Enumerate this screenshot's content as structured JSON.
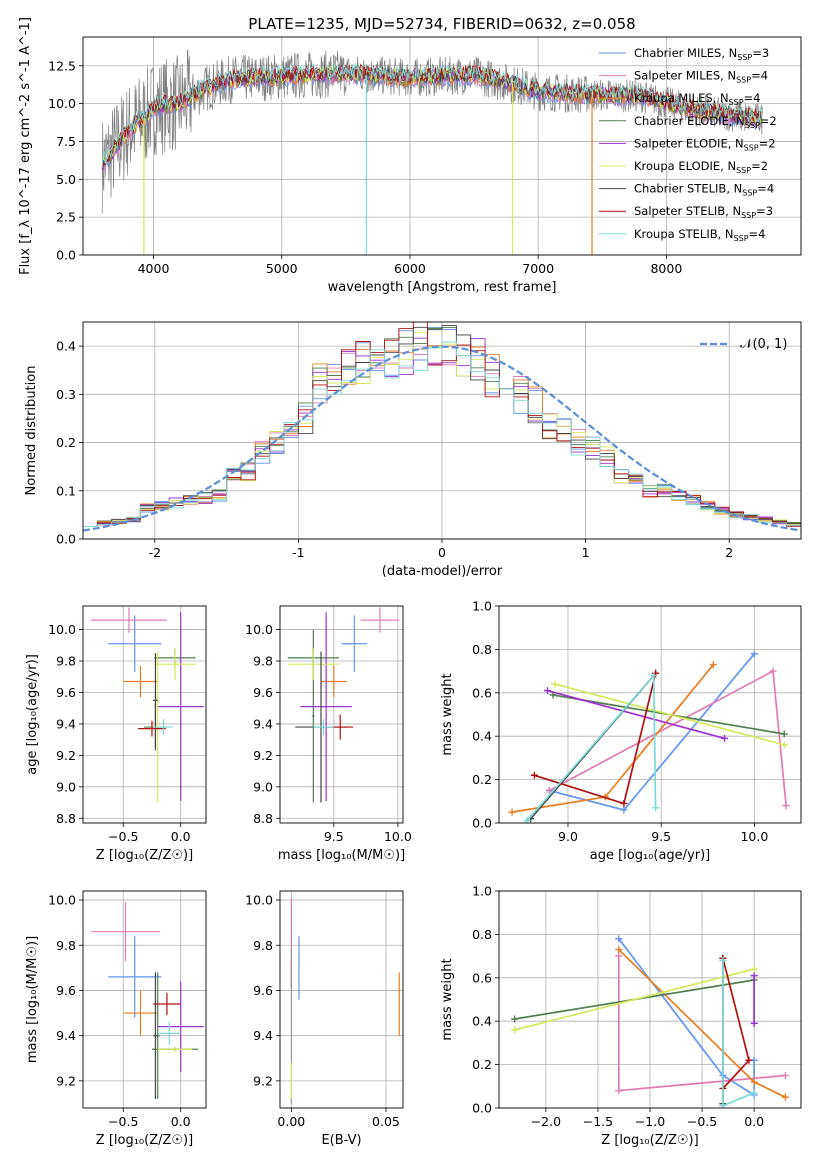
{
  "chart_data": [
    {
      "id": "spectrum",
      "type": "line",
      "title": "PLATE=1235, MJD=52734, FIBERID=0632, z=0.058",
      "xlabel": "wavelength [Angstrom, rest frame]",
      "ylabel": "Flux [f_λ 10^-17 erg cm^-2 s^-1 A^-1]",
      "xlim": [
        3450,
        9050
      ],
      "ylim": [
        0,
        14.4
      ],
      "xticks": [
        4000,
        5000,
        6000,
        7000,
        8000
      ],
      "yticks": [
        0.0,
        2.5,
        5.0,
        7.5,
        10.0,
        12.5
      ],
      "legend_position": "top-right",
      "data_color": "#808080",
      "continuum_points": [
        [
          3600,
          6.0
        ],
        [
          3700,
          7.0
        ],
        [
          3800,
          8.2
        ],
        [
          3950,
          9.2
        ],
        [
          4000,
          9.8
        ],
        [
          4200,
          10.0
        ],
        [
          4400,
          11.0
        ],
        [
          4600,
          11.6
        ],
        [
          5000,
          11.8
        ],
        [
          5500,
          12.0
        ],
        [
          6000,
          11.7
        ],
        [
          6500,
          11.9
        ],
        [
          6800,
          11.3
        ],
        [
          7000,
          10.8
        ],
        [
          7400,
          10.6
        ],
        [
          7800,
          10.5
        ],
        [
          8200,
          9.6
        ],
        [
          8700,
          9.0
        ]
      ],
      "series": [
        {
          "name": "Chabrier MILES, N_SSP=3",
          "label_main": "Chabrier MILES, N",
          "label_sub": "SSP",
          "label_tail": "=3",
          "color": "#6495ed"
        },
        {
          "name": "Salpeter MILES, N_SSP=4",
          "label_main": "Salpeter MILES, N",
          "label_sub": "SSP",
          "label_tail": "=4",
          "color": "#e07bb5"
        },
        {
          "name": "Kroupa MILES, N_SSP=4",
          "label_main": "Kroupa MILES, N",
          "label_sub": "SSP",
          "label_tail": "=4",
          "color": "#e67e22"
        },
        {
          "name": "Chabrier ELODIE, N_SSP=2",
          "label_main": "Chabrier ELODIE, N",
          "label_sub": "SSP",
          "label_tail": "=2",
          "color": "#4f7f4f"
        },
        {
          "name": "Salpeter ELODIE, N_SSP=2",
          "label_main": "Salpeter ELODIE, N",
          "label_sub": "SSP",
          "label_tail": "=2",
          "color": "#9b30d0"
        },
        {
          "name": "Kroupa ELODIE, N_SSP=2",
          "label_main": "Kroupa ELODIE, N",
          "label_sub": "SSP",
          "label_tail": "=2",
          "color": "#d4e85a"
        },
        {
          "name": "Chabrier STELIB, N_SSP=4",
          "label_main": "Chabrier STELIB, N",
          "label_sub": "SSP",
          "label_tail": "=4",
          "color": "#444444"
        },
        {
          "name": "Salpeter STELIB, N_SSP=3",
          "label_main": "Salpeter STELIB, N",
          "label_sub": "SSP",
          "label_tail": "=3",
          "color": "#b01010"
        },
        {
          "name": "Kroupa STELIB, N_SSP=4",
          "label_main": "Kroupa STELIB, N",
          "label_sub": "SSP",
          "label_tail": "=4",
          "color": "#7fd8d8"
        }
      ]
    },
    {
      "id": "residuals",
      "type": "histogram",
      "xlabel": "(data-model)/error",
      "ylabel": "Normed distribution",
      "xlim": [
        -2.5,
        2.5
      ],
      "ylim": [
        0,
        0.45
      ],
      "xticks": [
        -2,
        -1,
        0,
        1,
        2
      ],
      "yticks": [
        0.0,
        0.1,
        0.2,
        0.3,
        0.4
      ],
      "legend_position": "top-right",
      "legend_label": "𝒩(0, 1)",
      "gaussian_color": "#5b8fd6",
      "bins": [
        -2.5,
        2.5,
        50
      ],
      "base_heights": [
        0.03,
        0.033,
        0.036,
        0.04,
        0.065,
        0.07,
        0.075,
        0.08,
        0.085,
        0.09,
        0.13,
        0.14,
        0.18,
        0.2,
        0.22,
        0.25,
        0.32,
        0.33,
        0.35,
        0.36,
        0.38,
        0.37,
        0.39,
        0.4,
        0.39,
        0.4,
        0.38,
        0.37,
        0.34,
        0.35,
        0.3,
        0.28,
        0.24,
        0.22,
        0.2,
        0.19,
        0.17,
        0.13,
        0.12,
        0.1,
        0.1,
        0.09,
        0.08,
        0.07,
        0.06,
        0.05,
        0.045,
        0.04,
        0.035,
        0.03
      ]
    },
    {
      "id": "age_vs_Z",
      "type": "scatter",
      "xlabel": "Z [log₁₀(Z/Z☉)]",
      "ylabel": "age [log₁₀(age/yr)]",
      "xlim": [
        -0.85,
        0.22
      ],
      "ylim": [
        8.77,
        10.15
      ],
      "xticks": [
        -0.5,
        0.0
      ],
      "xticklabels": [
        "−0.5",
        "0.0"
      ],
      "yticks": [
        8.8,
        9.0,
        9.2,
        9.4,
        9.6,
        9.8,
        10.0
      ],
      "points": [
        {
          "x": -0.4,
          "y": 9.91,
          "xerr": 0.23,
          "yerr": 0.18,
          "color": "#6495ed"
        },
        {
          "x": -0.45,
          "y": 10.06,
          "xerr": 0.33,
          "yerr": 0.08,
          "color": "#e07bb5"
        },
        {
          "x": -0.35,
          "y": 9.67,
          "xerr": 0.15,
          "yerr": 0.1,
          "color": "#e67e22"
        },
        {
          "x": -0.05,
          "y": 9.82,
          "xerr": 0.18,
          "yerr": 0.06,
          "color": "#4f7f4f"
        },
        {
          "x": -0.22,
          "y": 9.38,
          "xerr": 0.1,
          "yerr": 0.15,
          "color": "#4f7f4f"
        },
        {
          "x": 0.0,
          "y": 9.51,
          "xerr": 0.2,
          "yerr": 0.6,
          "color": "#9b30d0"
        },
        {
          "x": -0.05,
          "y": 9.78,
          "xerr": 0.18,
          "yerr": 0.1,
          "color": "#d4e85a"
        },
        {
          "x": -0.2,
          "y": 9.38,
          "xerr": 0.04,
          "yerr": 0.48,
          "color": "#d4e85a"
        },
        {
          "x": -0.22,
          "y": 9.55,
          "xerr": 0.02,
          "yerr": 0.3,
          "color": "#444444"
        },
        {
          "x": -0.25,
          "y": 9.37,
          "xerr": 0.12,
          "yerr": 0.05,
          "color": "#b01010"
        },
        {
          "x": -0.15,
          "y": 9.38,
          "xerr": 0.08,
          "yerr": 0.05,
          "color": "#7fd8d8"
        }
      ]
    },
    {
      "id": "age_vs_mass",
      "type": "scatter",
      "xlabel": "mass [log₁₀(M/M☉)]",
      "ylabel": "",
      "xlim": [
        9.08,
        10.04
      ],
      "ylim": [
        8.77,
        10.15
      ],
      "xticks": [
        9.5,
        10.0
      ],
      "xticklabels": [
        "9.5",
        "10.0"
      ],
      "yticks": [
        8.8,
        9.0,
        9.2,
        9.4,
        9.6,
        9.8,
        10.0
      ],
      "points": [
        {
          "x": 9.66,
          "y": 9.91,
          "xerr": 0.1,
          "yerr": 0.18,
          "color": "#6495ed"
        },
        {
          "x": 9.86,
          "y": 10.06,
          "xerr": 0.15,
          "yerr": 0.08,
          "color": "#e07bb5"
        },
        {
          "x": 9.5,
          "y": 9.67,
          "xerr": 0.1,
          "yerr": 0.1,
          "color": "#e67e22"
        },
        {
          "x": 9.34,
          "y": 9.82,
          "xerr": 0.2,
          "yerr": 0.06,
          "color": "#4f7f4f"
        },
        {
          "x": 9.34,
          "y": 9.45,
          "xerr": 0.01,
          "yerr": 0.55,
          "color": "#4f7f4f"
        },
        {
          "x": 9.44,
          "y": 9.51,
          "xerr": 0.2,
          "yerr": 0.6,
          "color": "#9b30d0"
        },
        {
          "x": 9.34,
          "y": 9.78,
          "xerr": 0.2,
          "yerr": 0.1,
          "color": "#d4e85a"
        },
        {
          "x": 9.4,
          "y": 9.38,
          "xerr": 0.2,
          "yerr": 0.48,
          "color": "#444444"
        },
        {
          "x": 9.55,
          "y": 9.38,
          "xerr": 0.1,
          "yerr": 0.08,
          "color": "#b01010"
        },
        {
          "x": 9.42,
          "y": 9.38,
          "xerr": 0.08,
          "yerr": 0.05,
          "color": "#7fd8d8"
        }
      ]
    },
    {
      "id": "weight_vs_age",
      "type": "line",
      "xlabel": "age [log₁₀(age/yr)]",
      "ylabel": "mass weight",
      "xlim": [
        8.63,
        10.25
      ],
      "ylim": [
        0,
        1.0
      ],
      "xticks": [
        9.0,
        9.5,
        10.0
      ],
      "xticklabels": [
        "9.0",
        "9.5",
        "10.0"
      ],
      "yticks": [
        0.0,
        0.2,
        0.4,
        0.6,
        0.8,
        1.0
      ],
      "series": [
        {
          "color": "#6495ed",
          "points": [
            [
              8.9,
              0.15
            ],
            [
              9.3,
              0.06
            ],
            [
              10.0,
              0.78
            ]
          ]
        },
        {
          "color": "#e07bb5",
          "points": [
            [
              8.9,
              0.15
            ],
            [
              10.1,
              0.7
            ],
            [
              10.17,
              0.08
            ]
          ]
        },
        {
          "color": "#e67e22",
          "points": [
            [
              8.7,
              0.05
            ],
            [
              9.2,
              0.12
            ],
            [
              9.78,
              0.73
            ]
          ]
        },
        {
          "color": "#4f7f4f",
          "points": [
            [
              8.92,
              0.59
            ],
            [
              10.16,
              0.41
            ]
          ]
        },
        {
          "color": "#9b30d0",
          "points": [
            [
              8.89,
              0.61
            ],
            [
              9.84,
              0.39
            ]
          ]
        },
        {
          "color": "#d4e85a",
          "points": [
            [
              8.93,
              0.64
            ],
            [
              10.16,
              0.36
            ]
          ]
        },
        {
          "color": "#444444",
          "points": [
            [
              8.8,
              0.02
            ],
            [
              9.47,
              0.69
            ]
          ]
        },
        {
          "color": "#b01010",
          "points": [
            [
              8.82,
              0.22
            ],
            [
              9.3,
              0.09
            ],
            [
              9.47,
              0.69
            ]
          ]
        },
        {
          "color": "#7fd8d8",
          "points": [
            [
              8.78,
              0.01
            ],
            [
              9.46,
              0.68
            ],
            [
              9.47,
              0.07
            ]
          ]
        }
      ]
    },
    {
      "id": "mass_vs_Z",
      "type": "scatter",
      "xlabel": "Z [log₁₀(Z/Z☉)]",
      "ylabel": "mass [log₁₀(M/M☉)]",
      "xlim": [
        -0.85,
        0.22
      ],
      "ylim": [
        9.08,
        10.04
      ],
      "xticks": [
        -0.5,
        0.0
      ],
      "xticklabels": [
        "−0.5",
        "0.0"
      ],
      "yticks": [
        9.2,
        9.4,
        9.6,
        9.8,
        10.0
      ],
      "points": [
        {
          "x": -0.4,
          "y": 9.66,
          "xerr": 0.23,
          "yerr": 0.18,
          "color": "#6495ed"
        },
        {
          "x": -0.48,
          "y": 9.86,
          "xerr": 0.3,
          "yerr": 0.13,
          "color": "#e07bb5"
        },
        {
          "x": -0.35,
          "y": 9.5,
          "xerr": 0.15,
          "yerr": 0.1,
          "color": "#e67e22"
        },
        {
          "x": -0.05,
          "y": 9.34,
          "xerr": 0.2,
          "yerr": 0.01,
          "color": "#4f7f4f"
        },
        {
          "x": -0.2,
          "y": 9.4,
          "xerr": 0.02,
          "yerr": 0.28,
          "color": "#4f7f4f"
        },
        {
          "x": 0.0,
          "y": 9.44,
          "xerr": 0.2,
          "yerr": 0.2,
          "color": "#9b30d0"
        },
        {
          "x": -0.05,
          "y": 9.34,
          "xerr": 0.15,
          "yerr": 0.01,
          "color": "#d4e85a"
        },
        {
          "x": -0.22,
          "y": 9.4,
          "xerr": 0.02,
          "yerr": 0.28,
          "color": "#444444"
        },
        {
          "x": -0.12,
          "y": 9.54,
          "xerr": 0.12,
          "yerr": 0.05,
          "color": "#b01010"
        },
        {
          "x": -0.1,
          "y": 9.41,
          "xerr": 0.1,
          "yerr": 0.05,
          "color": "#7fd8d8"
        }
      ]
    },
    {
      "id": "mass_vs_EBV",
      "type": "scatter",
      "xlabel": "E(B-V)",
      "ylabel": "",
      "xlim": [
        -0.006,
        0.059
      ],
      "ylim": [
        9.08,
        10.04
      ],
      "xticks": [
        0.0,
        0.05
      ],
      "xticklabels": [
        "0.00",
        "0.05"
      ],
      "yticks": [
        9.2,
        9.4,
        9.6,
        9.8,
        10.0
      ],
      "points": [
        {
          "x": 0.0,
          "y": 9.86,
          "xerr": 0.0,
          "yerr": 0.15,
          "color": "#e07bb5"
        },
        {
          "x": 0.004,
          "y": 9.7,
          "xerr": 0.0,
          "yerr": 0.14,
          "color": "#6495ed"
        },
        {
          "x": 0.0,
          "y": 9.67,
          "xerr": 0.0,
          "yerr": 0.06,
          "color": "#b01010"
        },
        {
          "x": 0.0,
          "y": 9.45,
          "xerr": 0.0,
          "yerr": 0.35,
          "color": "#9b9b9b"
        },
        {
          "x": 0.0,
          "y": 9.2,
          "xerr": 0.0,
          "yerr": 0.08,
          "color": "#d4e85a"
        },
        {
          "x": 0.057,
          "y": 9.54,
          "xerr": 0.0,
          "yerr": 0.14,
          "color": "#e67e22"
        }
      ]
    },
    {
      "id": "weight_vs_Z",
      "type": "line",
      "xlabel": "Z [log₁₀(Z/Z☉)]",
      "ylabel": "mass weight",
      "xlim": [
        -2.45,
        0.45
      ],
      "ylim": [
        0,
        1.0
      ],
      "xticks": [
        -2.0,
        -1.5,
        -1.0,
        -0.5,
        0.0
      ],
      "xticklabels": [
        "−2.0",
        "−1.5",
        "−1.0",
        "−0.5",
        "0.0"
      ],
      "yticks": [
        0.0,
        0.2,
        0.4,
        0.6,
        0.8,
        1.0
      ],
      "series": [
        {
          "color": "#6495ed",
          "points": [
            [
              -1.3,
              0.78
            ],
            [
              -0.3,
              0.15
            ],
            [
              0.0,
              0.06
            ],
            [
              0.0,
              0.22
            ]
          ]
        },
        {
          "color": "#e07bb5",
          "points": [
            [
              -1.3,
              0.7
            ],
            [
              -1.3,
              0.08
            ],
            [
              0.3,
              0.15
            ]
          ]
        },
        {
          "color": "#e67e22",
          "points": [
            [
              -1.3,
              0.73
            ],
            [
              0.0,
              0.12
            ],
            [
              0.3,
              0.05
            ]
          ]
        },
        {
          "color": "#4f7f4f",
          "points": [
            [
              -2.3,
              0.41
            ],
            [
              0.0,
              0.59
            ]
          ]
        },
        {
          "color": "#9b30d0",
          "points": [
            [
              0.0,
              0.61
            ],
            [
              0.0,
              0.39
            ]
          ]
        },
        {
          "color": "#d4e85a",
          "points": [
            [
              -2.3,
              0.36
            ],
            [
              0.0,
              0.64
            ]
          ]
        },
        {
          "color": "#444444",
          "points": [
            [
              -0.3,
              0.69
            ],
            [
              -0.3,
              0.02
            ]
          ]
        },
        {
          "color": "#b01010",
          "points": [
            [
              -0.3,
              0.09
            ],
            [
              -0.05,
              0.22
            ],
            [
              -0.3,
              0.69
            ]
          ]
        },
        {
          "color": "#7fd8d8",
          "points": [
            [
              -0.3,
              0.68
            ],
            [
              -0.3,
              0.01
            ],
            [
              0.0,
              0.07
            ]
          ]
        }
      ]
    }
  ]
}
